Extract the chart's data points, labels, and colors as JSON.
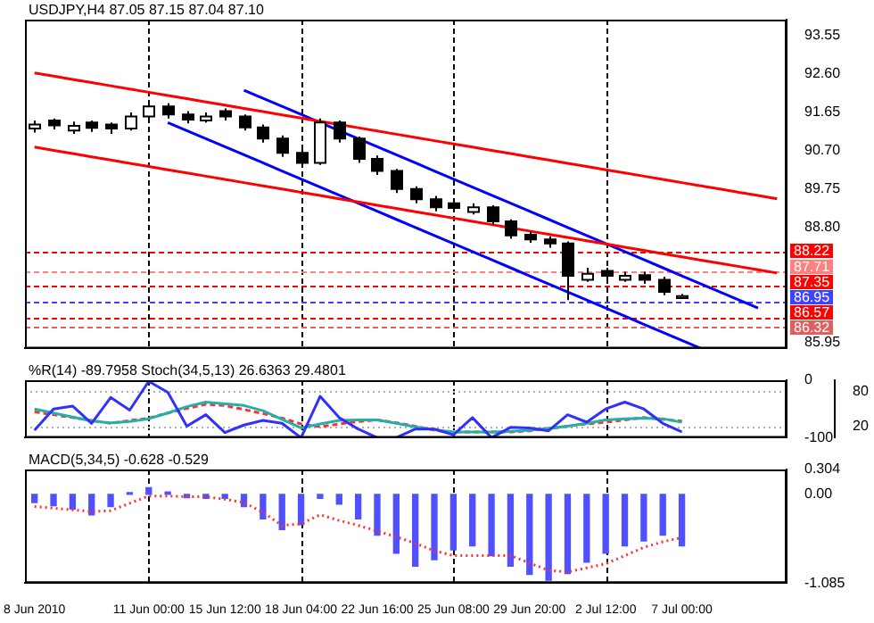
{
  "chart_data": [
    {
      "type": "candlestick",
      "title": "USDJPY,H4 87.05 87.15 87.04 87.10",
      "tick_labels": "y",
      "categories": [
        "8 Jun 2010",
        null,
        null,
        null,
        null,
        null,
        "11 Jun 00:00",
        null,
        null,
        null,
        "15 Jun 12:00",
        null,
        null,
        null,
        "18 Jun 04:00",
        null,
        null,
        null,
        "22 Jun 16:00",
        null,
        null,
        null,
        "25 Jun 08:00",
        null,
        null,
        null,
        "29 Jun 20:00",
        null,
        null,
        null,
        "2 Jul 12:00",
        null,
        null,
        null,
        "7 Jul 00:00",
        null,
        null,
        null,
        null,
        null
      ],
      "ohlc": [
        [
          91.25,
          91.45,
          91.15,
          91.35
        ],
        [
          91.45,
          91.5,
          91.23,
          91.33
        ],
        [
          91.2,
          91.42,
          91.12,
          91.32
        ],
        [
          91.4,
          91.45,
          91.17,
          91.27
        ],
        [
          91.35,
          91.4,
          91.12,
          91.25
        ],
        [
          91.25,
          91.65,
          91.2,
          91.55
        ],
        [
          91.55,
          91.9,
          91.5,
          91.8
        ],
        [
          91.8,
          91.88,
          91.5,
          91.6
        ],
        [
          91.6,
          91.68,
          91.38,
          91.47
        ],
        [
          91.45,
          91.65,
          91.4,
          91.55
        ],
        [
          91.68,
          91.75,
          91.45,
          91.55
        ],
        [
          91.55,
          91.6,
          91.2,
          91.28
        ],
        [
          91.28,
          91.35,
          90.9,
          91.0
        ],
        [
          91.0,
          91.08,
          90.55,
          90.65
        ],
        [
          90.65,
          90.72,
          90.28,
          90.4
        ],
        [
          90.4,
          91.5,
          90.35,
          91.4
        ],
        [
          91.4,
          91.45,
          90.9,
          91.0
        ],
        [
          91.0,
          91.05,
          90.4,
          90.5
        ],
        [
          90.5,
          90.58,
          90.1,
          90.2
        ],
        [
          90.2,
          90.25,
          89.65,
          89.75
        ],
        [
          89.75,
          89.82,
          89.4,
          89.5
        ],
        [
          89.5,
          89.58,
          89.2,
          89.3
        ],
        [
          89.4,
          89.48,
          89.2,
          89.28
        ],
        [
          89.18,
          89.4,
          89.12,
          89.3
        ],
        [
          89.3,
          89.35,
          88.88,
          88.95
        ],
        [
          88.95,
          89.0,
          88.52,
          88.6
        ],
        [
          88.62,
          88.7,
          88.42,
          88.5
        ],
        [
          88.5,
          88.58,
          88.3,
          88.4
        ],
        [
          88.4,
          88.45,
          87.0,
          87.6
        ],
        [
          87.5,
          87.8,
          87.45,
          87.65
        ],
        [
          87.72,
          87.8,
          87.5,
          87.6
        ],
        [
          87.5,
          87.7,
          87.45,
          87.6
        ],
        [
          87.62,
          87.7,
          87.4,
          87.5
        ],
        [
          87.5,
          87.58,
          87.12,
          87.2
        ],
        [
          87.05,
          87.15,
          87.04,
          87.1
        ],
        null,
        null,
        null,
        null,
        null
      ],
      "series": [
        {
          "type": "line",
          "color": "#ff0000",
          "values": [
            92.63,
            92.55,
            92.47,
            92.39,
            92.31,
            92.23,
            92.15,
            92.07,
            91.99,
            91.91,
            91.83,
            91.75,
            91.67,
            91.59,
            91.51,
            91.43,
            91.35,
            91.27,
            91.19,
            91.11,
            91.03,
            90.95,
            90.87,
            90.79,
            90.71,
            90.63,
            90.55,
            90.47,
            90.39,
            90.31,
            90.23,
            90.15,
            90.07,
            89.99,
            89.91,
            89.83,
            89.75,
            89.67,
            89.59,
            89.51
          ]
        },
        {
          "type": "line",
          "color": "#ff0000",
          "values": [
            90.79,
            90.71,
            90.63,
            90.55,
            90.47,
            90.39,
            90.31,
            90.23,
            90.15,
            90.07,
            89.99,
            89.91,
            89.83,
            89.75,
            89.67,
            89.59,
            89.51,
            89.43,
            89.35,
            89.27,
            89.19,
            89.11,
            89.03,
            88.95,
            88.87,
            88.79,
            88.71,
            88.63,
            88.55,
            88.47,
            88.39,
            88.31,
            88.23,
            88.15,
            88.07,
            87.99,
            87.91,
            87.83,
            87.75,
            87.67
          ]
        },
        {
          "type": "line",
          "color": "#0000ff",
          "values": [
            null,
            null,
            null,
            null,
            null,
            null,
            null,
            null,
            null,
            null,
            null,
            92.2,
            92.0,
            91.8,
            91.6,
            91.4,
            91.2,
            91.0,
            90.8,
            90.6,
            90.4,
            90.2,
            90.0,
            89.8,
            89.6,
            89.4,
            89.2,
            89.0,
            88.8,
            88.6,
            88.4,
            88.2,
            88.0,
            87.8,
            87.6,
            87.4,
            87.2,
            87.0,
            86.8,
            null
          ]
        },
        {
          "type": "line",
          "color": "#0000ff",
          "values": [
            null,
            null,
            null,
            null,
            null,
            null,
            null,
            91.4,
            91.2,
            91.0,
            90.8,
            90.6,
            90.4,
            90.2,
            90.0,
            89.8,
            89.6,
            89.4,
            89.2,
            89.0,
            88.8,
            88.6,
            88.4,
            88.2,
            88.0,
            87.8,
            87.6,
            87.4,
            87.2,
            87.0,
            86.8,
            86.6,
            86.4,
            86.2,
            86.0,
            85.8,
            null,
            null,
            null,
            null
          ]
        }
      ],
      "ylim": [
        85.8,
        93.95
      ],
      "yticks": [
        93.55,
        {
          "value": 92.6,
          "label": "92.60"
        },
        91.65,
        {
          "value": 90.7,
          "label": "90.70"
        },
        89.75,
        {
          "value": 88.8,
          "label": "88.80"
        },
        85.95
      ],
      "ref_lines": [
        {
          "axis": "x",
          "value": "11 Jun 00:00",
          "color": "#000000",
          "line_style": "dashed"
        },
        {
          "axis": "x",
          "value": "18 Jun 04:00",
          "color": "#000000",
          "line_style": "dashed"
        },
        {
          "axis": "x",
          "value": "25 Jun 08:00",
          "color": "#000000",
          "line_style": "dashed"
        },
        {
          "axis": "x",
          "value": "2 Jul 12:00",
          "color": "#000000",
          "line_style": "dashed"
        },
        {
          "axis": "y",
          "value": 88.22,
          "label": "88.22",
          "color": "#ff0000",
          "line_style": "dashed"
        },
        {
          "axis": "y",
          "value": 87.71,
          "label": "87.71",
          "color": "#ff8080",
          "line_style": "dashed"
        },
        {
          "axis": "y",
          "value": 87.35,
          "label": "87.35",
          "color": "#ff0000",
          "line_style": "dashed"
        },
        {
          "axis": "y",
          "value": 86.95,
          "label": "86.95",
          "color": "#4040ff",
          "line_style": "dashed"
        },
        {
          "axis": "y",
          "value": 86.57,
          "label": "86.57",
          "color": "#ff0000",
          "line_style": "dashed"
        },
        {
          "axis": "y",
          "value": 86.32,
          "label": "86.32",
          "color": "#e06060",
          "line_style": "dashed"
        }
      ]
    },
    {
      "type": "line",
      "title": "%R(14) -89.7958 Stoch(34,5,13) 26.6363 29.4801",
      "tick_labels": "y",
      "categories": [
        "8 Jun 2010",
        null,
        null,
        null,
        null,
        null,
        "11 Jun 00:00",
        null,
        null,
        null,
        "15 Jun 12:00",
        null,
        null,
        null,
        "18 Jun 04:00",
        null,
        null,
        null,
        "22 Jun 16:00",
        null,
        null,
        null,
        "25 Jun 08:00",
        null,
        null,
        null,
        "29 Jun 20:00",
        null,
        null,
        null,
        "2 Jul 12:00",
        null,
        null,
        null,
        "7 Jul 00:00",
        null,
        null,
        null,
        null,
        null
      ],
      "series": [
        {
          "color": "#3030ff",
          "values": [
            -87,
            -50,
            -45,
            -75,
            -30,
            -52,
            -2,
            -21,
            -80,
            -60,
            -91,
            -78,
            -70,
            -75,
            -100,
            -28,
            -65,
            -85,
            -100,
            -100,
            -85,
            -85,
            -95,
            -65,
            -100,
            -82,
            -83,
            -88,
            -60,
            -73,
            -50,
            -38,
            -50,
            -75,
            -90,
            null,
            null,
            null,
            null,
            null
          ]
        },
        {
          "color": "#20b2aa",
          "axis": "y2",
          "values": [
            50,
            43,
            36,
            29,
            26,
            28,
            33,
            43,
            54,
            62,
            59,
            56,
            47,
            32,
            17,
            24,
            30,
            31,
            31,
            25,
            19,
            14,
            10,
            10,
            10,
            11,
            13,
            16,
            20,
            25,
            31,
            33,
            34,
            33,
            27,
            null,
            null,
            null,
            null,
            null
          ]
        },
        {
          "color": "#ff3030",
          "axis": "y2",
          "line_style": "dashed",
          "values": [
            45,
            40,
            35,
            30,
            25,
            30,
            34,
            43,
            51,
            58,
            56,
            49,
            42,
            34,
            24,
            19,
            24,
            28,
            31,
            26,
            20,
            13,
            10,
            10,
            10,
            10,
            12,
            16,
            20,
            24,
            27,
            31,
            35,
            32,
            29,
            null,
            null,
            null,
            null,
            null
          ]
        }
      ],
      "ylim": [
        -100,
        0
      ],
      "yticks": [
        0,
        -100
      ],
      "y2lim": [
        0,
        100
      ],
      "y2ticks": [
        20,
        80
      ],
      "ref_lines": [
        {
          "axis": "x",
          "value": "11 Jun 00:00",
          "color": "#000000",
          "line_style": "dashed"
        },
        {
          "axis": "x",
          "value": "18 Jun 04:00",
          "color": "#000000",
          "line_style": "dashed"
        },
        {
          "axis": "x",
          "value": "25 Jun 08:00",
          "color": "#000000",
          "line_style": "dashed"
        },
        {
          "axis": "x",
          "value": "2 Jul 12:00",
          "color": "#000000",
          "line_style": "dashed"
        },
        {
          "axis": "y2",
          "value": 20,
          "color": "#b0b0b0",
          "line_style": "dotted"
        },
        {
          "axis": "y2",
          "value": 80,
          "color": "#b0b0b0",
          "line_style": "dotted"
        }
      ]
    },
    {
      "type": "bar",
      "title": "MACD(5,34,5) -0.628 -0.529",
      "categories": [
        "8 Jun 2010",
        null,
        null,
        null,
        null,
        null,
        "11 Jun 00:00",
        null,
        null,
        null,
        "15 Jun 12:00",
        null,
        null,
        null,
        "18 Jun 04:00",
        null,
        null,
        null,
        "22 Jun 16:00",
        null,
        null,
        null,
        "25 Jun 08:00",
        null,
        null,
        null,
        "29 Jun 20:00",
        null,
        null,
        null,
        "2 Jul 12:00",
        null,
        null,
        null,
        "7 Jul 00:00",
        null,
        null,
        null,
        null,
        null
      ],
      "series": [
        {
          "type": "bar",
          "color": "#5050ff",
          "values": [
            -0.1,
            -0.14,
            -0.18,
            -0.25,
            -0.15,
            0.02,
            0.08,
            0.03,
            -0.04,
            -0.05,
            -0.05,
            -0.15,
            -0.3,
            -0.43,
            -0.37,
            -0.05,
            -0.12,
            -0.3,
            -0.5,
            -0.72,
            -0.88,
            -0.8,
            -0.68,
            -0.63,
            -0.75,
            -0.88,
            -0.98,
            -1.05,
            -0.97,
            -0.83,
            -0.72,
            -0.63,
            -0.57,
            -0.5,
            -0.63,
            null,
            null,
            null,
            null,
            null
          ]
        },
        {
          "type": "line",
          "color": "#ff3030",
          "line_style": "dotted",
          "values": [
            -0.15,
            -0.17,
            -0.19,
            -0.21,
            -0.2,
            -0.11,
            -0.02,
            -0.02,
            -0.03,
            -0.03,
            -0.06,
            -0.1,
            -0.22,
            -0.38,
            -0.36,
            -0.25,
            -0.32,
            -0.38,
            -0.45,
            -0.52,
            -0.6,
            -0.69,
            -0.75,
            -0.75,
            -0.75,
            -0.75,
            -0.84,
            -0.93,
            -0.95,
            -0.9,
            -0.85,
            -0.75,
            -0.65,
            -0.58,
            -0.53,
            null,
            null,
            null,
            null,
            null
          ]
        }
      ],
      "ylim": [
        -1.085,
        0.304
      ],
      "yticks": [
        0.304,
        {
          "value": 0,
          "label": "0.00"
        },
        -1.085
      ],
      "ref_lines": [
        {
          "axis": "x",
          "value": "11 Jun 00:00",
          "color": "#000000",
          "line_style": "dashed"
        },
        {
          "axis": "x",
          "value": "18 Jun 04:00",
          "color": "#000000",
          "line_style": "dashed"
        },
        {
          "axis": "x",
          "value": "25 Jun 08:00",
          "color": "#000000",
          "line_style": "dashed"
        },
        {
          "axis": "x",
          "value": "2 Jul 12:00",
          "color": "#000000",
          "line_style": "dashed"
        }
      ]
    }
  ]
}
